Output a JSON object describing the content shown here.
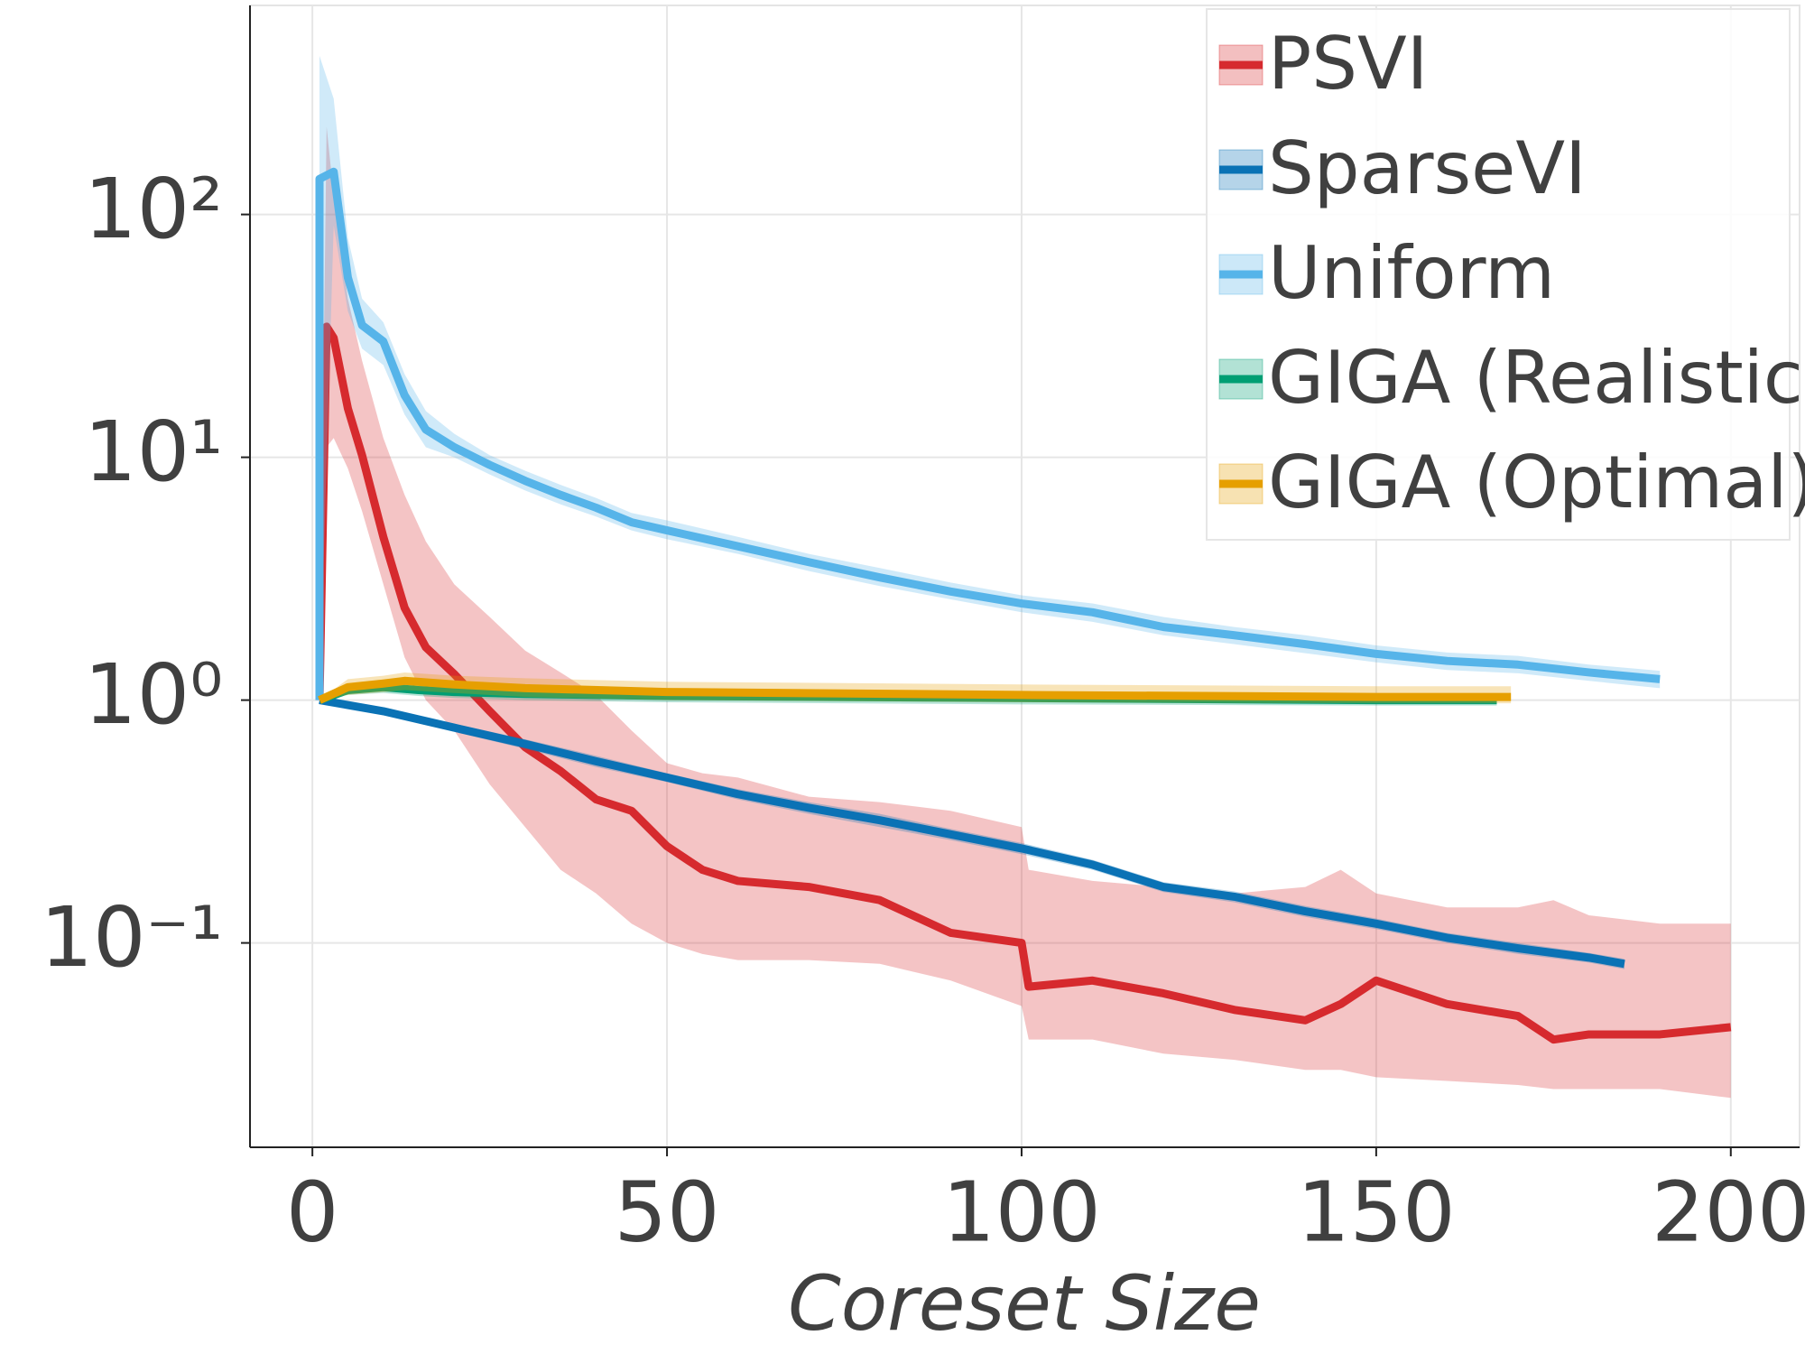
{
  "chart_data": {
    "type": "line",
    "xlabel": "Coreset Size",
    "xlim": [
      -8.8,
      209.7
    ],
    "xticks": [
      0,
      50,
      100,
      150,
      200
    ],
    "ylim": [
      0.0144,
      726
    ],
    "yscale": "log",
    "yticks": [
      {
        "value": 0.1,
        "label": "10⁻¹"
      },
      {
        "value": 1,
        "label": "10⁰"
      },
      {
        "value": 10,
        "label": "10¹"
      },
      {
        "value": 100,
        "label": "10²"
      }
    ],
    "grid": true,
    "legend": "upper right",
    "series": [
      {
        "name": "PSVI",
        "color": "#d62a2e",
        "x": [
          1,
          2,
          3,
          5,
          7,
          10,
          13,
          16,
          20,
          25,
          30,
          35,
          40,
          45,
          50,
          55,
          60,
          70,
          80,
          90,
          100,
          101,
          110,
          120,
          130,
          140,
          145,
          150,
          160,
          170,
          175,
          180,
          190,
          200
        ],
        "values": [
          1.0,
          34.5,
          31,
          15.9,
          10.2,
          4.7,
          2.4,
          1.65,
          1.28,
          0.9,
          0.64,
          0.51,
          0.39,
          0.35,
          0.25,
          0.2,
          0.18,
          0.17,
          0.15,
          0.11,
          0.1,
          0.066,
          0.07,
          0.062,
          0.053,
          0.048,
          0.056,
          0.07,
          0.056,
          0.05,
          0.04,
          0.042,
          0.042,
          0.045
        ],
        "lower": [
          1.0,
          11,
          12,
          9,
          6,
          3.0,
          1.5,
          1.0,
          0.75,
          0.45,
          0.3,
          0.2,
          0.16,
          0.12,
          0.1,
          0.09,
          0.085,
          0.085,
          0.082,
          0.07,
          0.055,
          0.04,
          0.04,
          0.035,
          0.033,
          0.03,
          0.03,
          0.028,
          0.027,
          0.026,
          0.025,
          0.025,
          0.025,
          0.023
        ],
        "upper": [
          1.0,
          230,
          120,
          45,
          25,
          12,
          7,
          4.5,
          3.0,
          2.2,
          1.6,
          1.3,
          1.05,
          0.75,
          0.55,
          0.5,
          0.48,
          0.4,
          0.38,
          0.35,
          0.3,
          0.2,
          0.18,
          0.17,
          0.16,
          0.17,
          0.2,
          0.16,
          0.14,
          0.14,
          0.15,
          0.13,
          0.12,
          0.12
        ]
      },
      {
        "name": "SparseVI",
        "color": "#0a72b5",
        "x": [
          1,
          10,
          20,
          30,
          40,
          50,
          60,
          70,
          80,
          90,
          100,
          110,
          120,
          130,
          140,
          150,
          160,
          170,
          180,
          185
        ],
        "values": [
          1.0,
          0.9,
          0.77,
          0.66,
          0.56,
          0.48,
          0.41,
          0.36,
          0.32,
          0.28,
          0.245,
          0.21,
          0.17,
          0.155,
          0.135,
          0.12,
          0.105,
          0.095,
          0.087,
          0.082
        ],
        "lower": [
          1.0,
          0.87,
          0.74,
          0.63,
          0.53,
          0.46,
          0.39,
          0.34,
          0.3,
          0.265,
          0.232,
          0.2,
          0.162,
          0.147,
          0.128,
          0.114,
          0.1,
          0.09,
          0.083,
          0.078
        ],
        "upper": [
          1.0,
          0.93,
          0.8,
          0.69,
          0.59,
          0.5,
          0.43,
          0.38,
          0.34,
          0.295,
          0.258,
          0.22,
          0.178,
          0.163,
          0.142,
          0.126,
          0.11,
          0.1,
          0.091,
          0.086
        ]
      },
      {
        "name": "Uniform",
        "color": "#56b4e9",
        "x": [
          1,
          1,
          3,
          5,
          7,
          10,
          13,
          16,
          20,
          25,
          30,
          35,
          40,
          45,
          50,
          60,
          70,
          80,
          90,
          100,
          110,
          120,
          130,
          140,
          150,
          160,
          170,
          180,
          190
        ],
        "values": [
          1.0,
          140,
          150,
          55,
          35,
          30,
          18,
          13,
          11,
          9.3,
          8,
          7,
          6.2,
          5.4,
          5.0,
          4.3,
          3.7,
          3.2,
          2.8,
          2.5,
          2.3,
          2.0,
          1.85,
          1.7,
          1.55,
          1.45,
          1.4,
          1.3,
          1.22
        ],
        "lower": [
          1.0,
          1.0,
          90,
          40,
          28,
          24,
          15,
          11,
          10,
          8.5,
          7.3,
          6.4,
          5.7,
          5.0,
          4.6,
          4.0,
          3.4,
          2.95,
          2.6,
          2.3,
          2.1,
          1.85,
          1.7,
          1.56,
          1.43,
          1.33,
          1.29,
          1.2,
          1.12
        ],
        "upper": [
          1.0,
          450,
          300,
          80,
          45,
          36,
          22,
          15.5,
          12.5,
          10.2,
          8.8,
          7.7,
          6.8,
          5.9,
          5.5,
          4.7,
          4.0,
          3.5,
          3.05,
          2.7,
          2.5,
          2.2,
          2.0,
          1.85,
          1.68,
          1.57,
          1.52,
          1.4,
          1.32
        ]
      },
      {
        "name": "GIGA (Realistic)",
        "color": "#009e73",
        "x": [
          1,
          5,
          10,
          15,
          20,
          30,
          50,
          100,
          150,
          167
        ],
        "values": [
          1.0,
          1.1,
          1.13,
          1.1,
          1.08,
          1.06,
          1.04,
          1.02,
          1.0,
          1.0
        ],
        "lower": [
          1.0,
          1.05,
          1.07,
          1.04,
          1.02,
          1.0,
          0.98,
          0.96,
          0.95,
          0.95
        ],
        "upper": [
          1.0,
          1.15,
          1.19,
          1.17,
          1.15,
          1.12,
          1.1,
          1.08,
          1.06,
          1.06
        ]
      },
      {
        "name": "GIGA (Optimal)",
        "color": "#e69f00",
        "x": [
          1,
          5,
          10,
          13,
          20,
          30,
          50,
          100,
          150,
          169
        ],
        "values": [
          1.0,
          1.13,
          1.17,
          1.2,
          1.16,
          1.12,
          1.08,
          1.05,
          1.03,
          1.03
        ],
        "lower": [
          1.0,
          1.05,
          1.08,
          1.1,
          1.07,
          1.03,
          1.0,
          0.98,
          0.97,
          0.97
        ],
        "upper": [
          1.0,
          1.22,
          1.26,
          1.3,
          1.26,
          1.23,
          1.19,
          1.16,
          1.14,
          1.14
        ]
      }
    ]
  }
}
